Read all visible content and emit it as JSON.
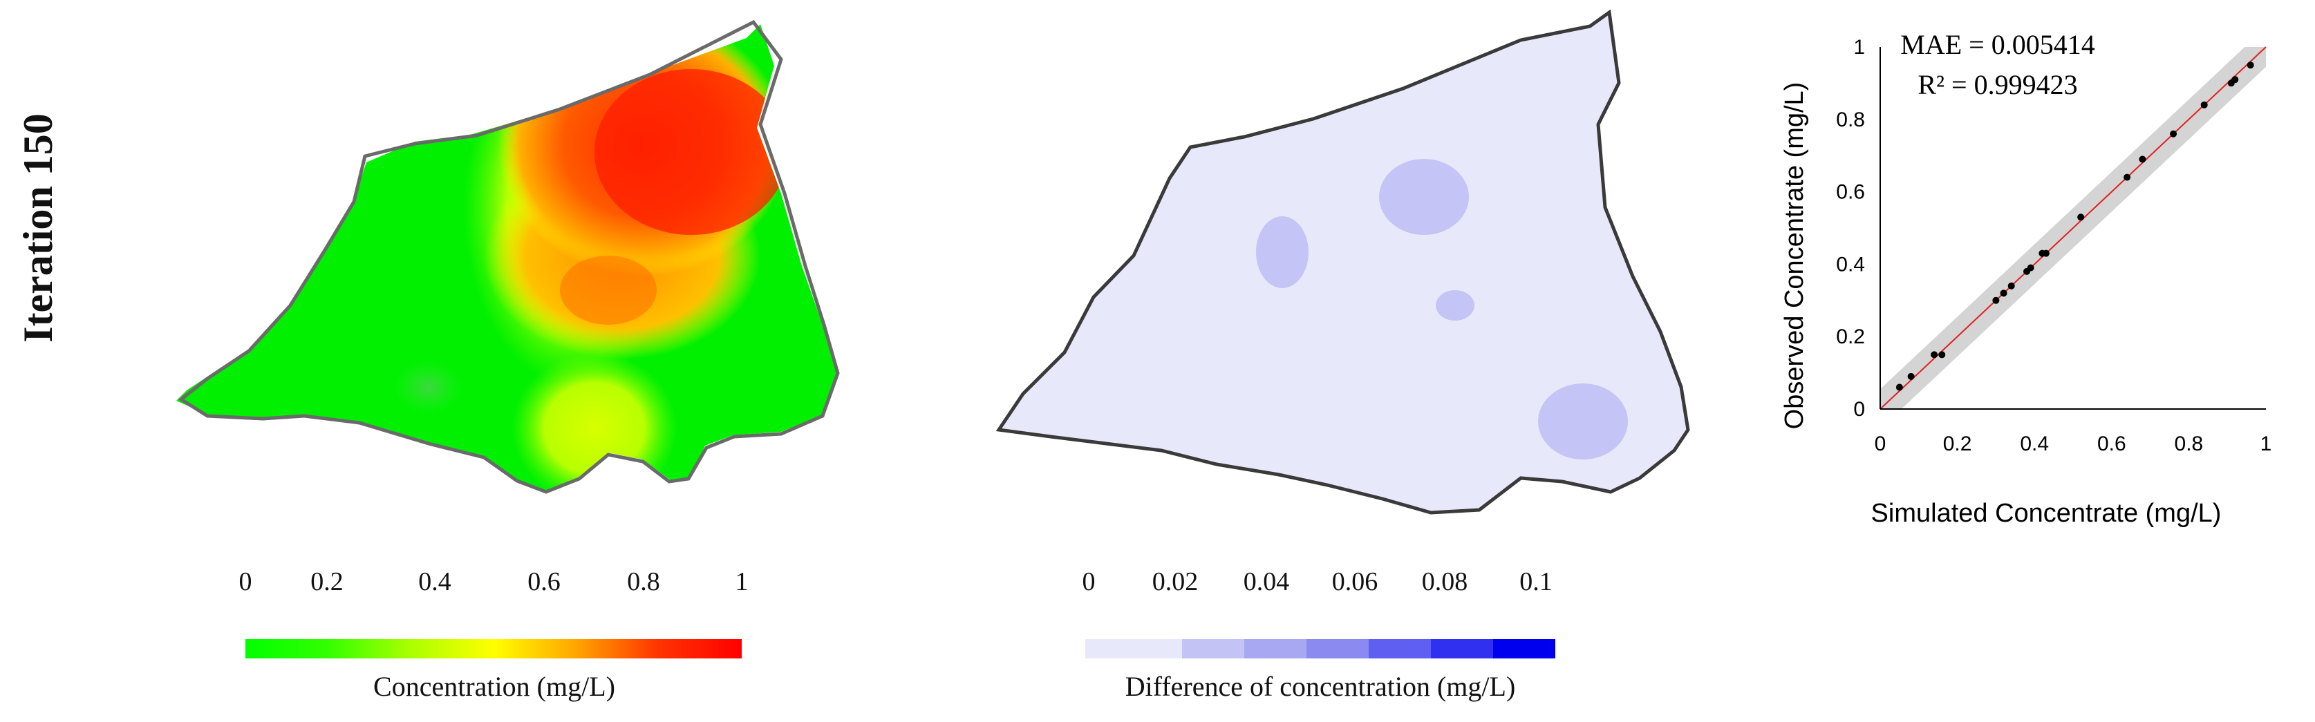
{
  "row_label": "Iteration 150",
  "map1": {
    "colorbar_title": "Concentration (mg/L)",
    "ticks": [
      "0",
      "0.2",
      "0.4",
      "0.6",
      "0.8",
      "1"
    ],
    "colors": [
      "#00ff00",
      "#33ff00",
      "#aaff00",
      "#ffff00",
      "#ffa500",
      "#ff3300",
      "#ff0000"
    ]
  },
  "map2": {
    "colorbar_title": "Difference of concentration (mg/L)",
    "ticks": [
      "0",
      "0.02",
      "0.04",
      "0.06",
      "0.08",
      "0.1"
    ],
    "colors": [
      "#e8e8fb",
      "#c3c3f5",
      "#a8a8f2",
      "#8a8af0",
      "#5f5ff2",
      "#3030f0",
      "#0000ee"
    ]
  },
  "chart_data": {
    "type": "scatter",
    "title": "",
    "annotations": [
      "MAE = 0.005414",
      "R² = 0.999423"
    ],
    "xlabel": "Simulated Concentrate (mg/L)",
    "ylabel": "Observed Concentrate (mg/L)",
    "xlim": [
      0,
      1
    ],
    "ylim": [
      0,
      1
    ],
    "x_ticks": [
      "0",
      "0.2",
      "0.4",
      "0.6",
      "0.8",
      "1"
    ],
    "y_ticks": [
      "0",
      "0.2",
      "0.4",
      "0.6",
      "0.8",
      "1"
    ],
    "grid": false,
    "reference_line": "1:1",
    "points": [
      {
        "x": 0.05,
        "y": 0.06
      },
      {
        "x": 0.08,
        "y": 0.09
      },
      {
        "x": 0.14,
        "y": 0.15
      },
      {
        "x": 0.16,
        "y": 0.15
      },
      {
        "x": 0.3,
        "y": 0.3
      },
      {
        "x": 0.32,
        "y": 0.32
      },
      {
        "x": 0.34,
        "y": 0.34
      },
      {
        "x": 0.38,
        "y": 0.38
      },
      {
        "x": 0.39,
        "y": 0.39
      },
      {
        "x": 0.42,
        "y": 0.43
      },
      {
        "x": 0.43,
        "y": 0.43
      },
      {
        "x": 0.52,
        "y": 0.53
      },
      {
        "x": 0.64,
        "y": 0.64
      },
      {
        "x": 0.68,
        "y": 0.69
      },
      {
        "x": 0.76,
        "y": 0.76
      },
      {
        "x": 0.84,
        "y": 0.84
      },
      {
        "x": 0.91,
        "y": 0.9
      },
      {
        "x": 0.92,
        "y": 0.91
      },
      {
        "x": 0.96,
        "y": 0.95
      }
    ]
  }
}
